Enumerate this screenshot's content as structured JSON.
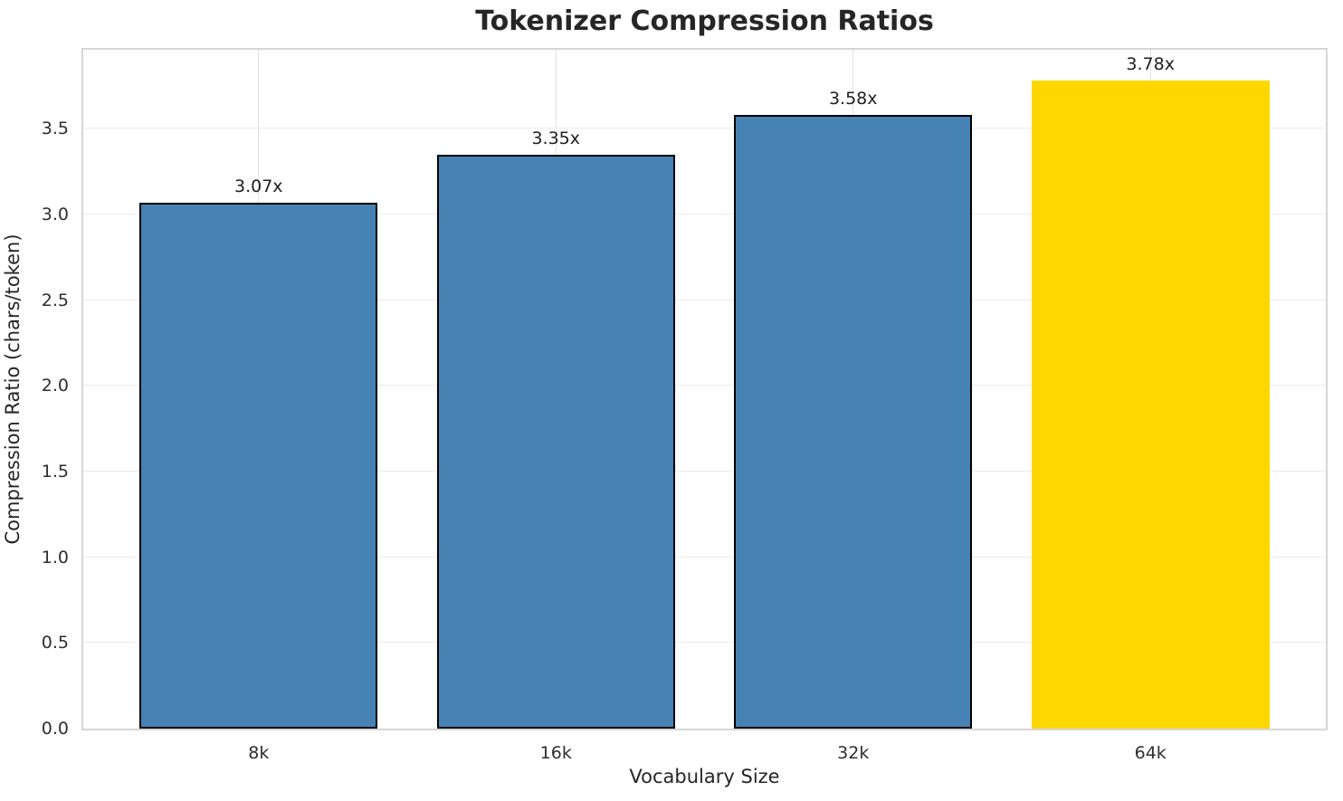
{
  "chart_data": {
    "type": "bar",
    "title": "Tokenizer Compression Ratios",
    "xlabel": "Vocabulary Size",
    "ylabel": "Compression Ratio (chars/token)",
    "categories": [
      "8k",
      "16k",
      "32k",
      "64k"
    ],
    "values": [
      3.07,
      3.35,
      3.58,
      3.78
    ],
    "bar_labels": [
      "3.07x",
      "3.35x",
      "3.58x",
      "3.78x"
    ],
    "bar_colors": [
      "#4682B4",
      "#4682B4",
      "#4682B4",
      "#FFD700"
    ],
    "bar_edge_colors": [
      "#000000",
      "#000000",
      "#000000",
      "none"
    ],
    "ylim": [
      0,
      3.96
    ],
    "ytick_values": [
      0.0,
      0.5,
      1.0,
      1.5,
      2.0,
      2.5,
      3.0,
      3.5
    ],
    "ytick_labels": [
      "0.0",
      "0.5",
      "1.0",
      "1.5",
      "2.0",
      "2.5",
      "3.0",
      "3.5"
    ],
    "grid": true,
    "legend": false,
    "grid_color_h": "#ebebeb",
    "grid_color_v": "#e2e2e2",
    "spine_color": "#d6d6d6",
    "text_color": "#262626"
  }
}
